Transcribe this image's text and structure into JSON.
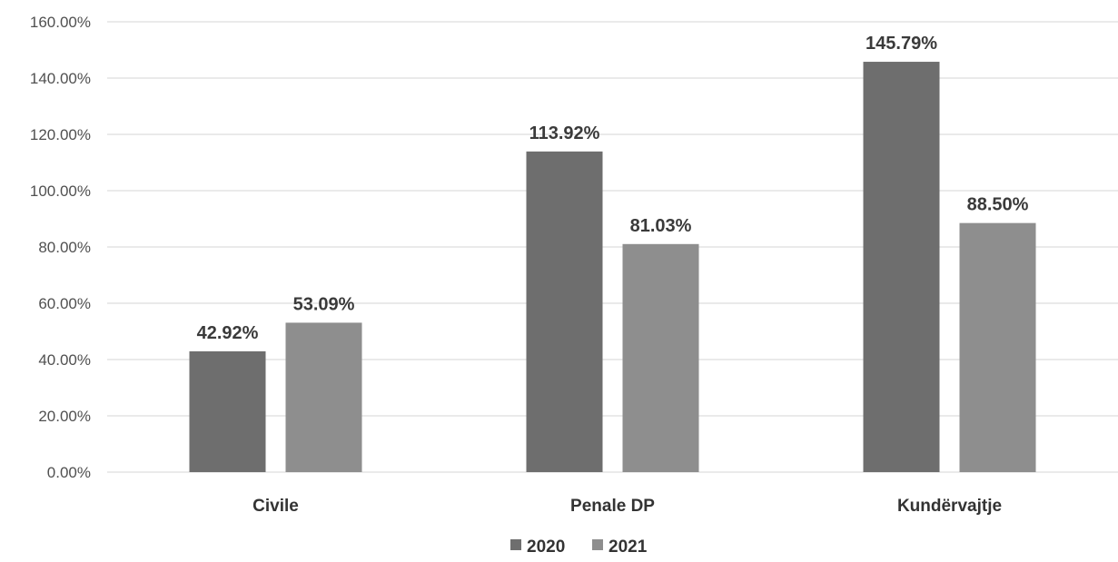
{
  "chart_data": {
    "type": "bar",
    "categories": [
      "Civile",
      "Penale  DP",
      "Kundërvajtje"
    ],
    "series": [
      {
        "name": "2020",
        "values": [
          42.92,
          113.92,
          145.79
        ],
        "labels": [
          "42.92%",
          "113.92%",
          "145.79%"
        ],
        "color": "#6e6e6e"
      },
      {
        "name": "2021",
        "values": [
          53.09,
          81.03,
          88.5
        ],
        "labels": [
          "53.09%",
          "81.03%",
          "88.50%"
        ],
        "color": "#8e8e8e"
      }
    ],
    "yticks": [
      "0.00%",
      "20.00%",
      "40.00%",
      "60.00%",
      "80.00%",
      "100.00%",
      "120.00%",
      "140.00%",
      "160.00%"
    ],
    "ylim": [
      0,
      160
    ],
    "grid": true,
    "legend": "bottom-center",
    "title": "",
    "xlabel": "",
    "ylabel": ""
  }
}
